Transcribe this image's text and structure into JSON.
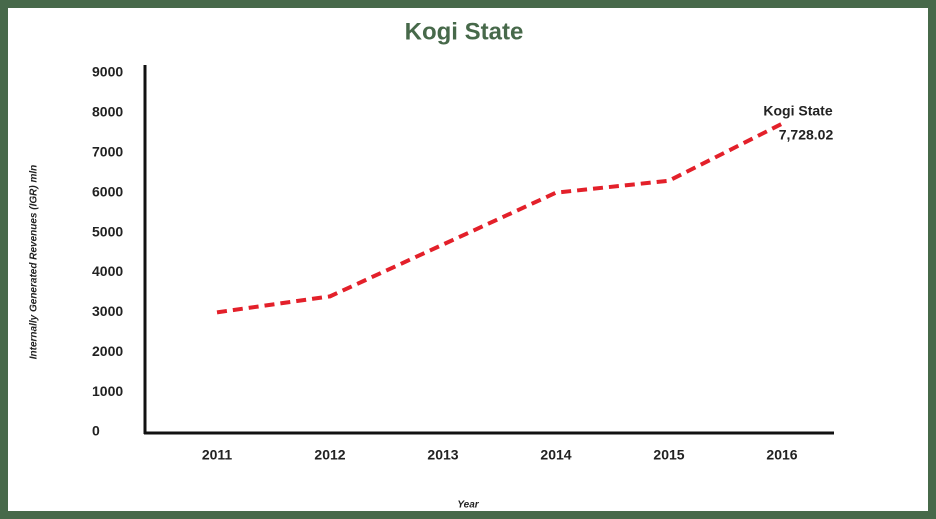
{
  "chart_data": {
    "type": "line",
    "title": "Kogi State",
    "x_label": "Year",
    "y_label": "Internally Generated Revenues (IGR)  mln",
    "categories": [
      "2011",
      "2012",
      "2013",
      "2014",
      "2015",
      "2016"
    ],
    "series": [
      {
        "name": "Kogi State",
        "color": "#e3202a",
        "values": [
          3000,
          3400,
          4700,
          6000,
          6300,
          7728.02
        ],
        "value_labels": [
          null,
          null,
          null,
          null,
          null,
          "7,728.02"
        ]
      }
    ],
    "ylim": [
      0,
      9000
    ],
    "yticks": [
      0,
      1000,
      2000,
      3000,
      4000,
      5000,
      6000,
      7000,
      8000,
      9000
    ]
  }
}
